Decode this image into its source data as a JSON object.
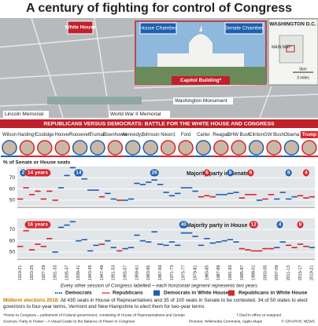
{
  "title": "A century of fighting for control of Congress",
  "map": {
    "white_house": "White House",
    "house_chamber": "House Chamber",
    "senate_chamber": "Senate Chamber",
    "capitol": "Capitol Building*",
    "inset_title": "WASHINGTON D.C.",
    "inset_main": "MAIN MAP",
    "scale_km": "5km",
    "scale_mi": "3 miles",
    "lincoln": "Lincoln Memorial",
    "ww2": "World War II Memorial",
    "monument": "Washington Monument"
  },
  "banner": "REPUBLICANS VERSUS DEMOCRATS: BATTLE FOR THE WHITE HOUSE AND CONGRESS",
  "presidents": [
    {
      "name": "Wilson",
      "color": "#1f5fb0"
    },
    {
      "name": "Harding†",
      "color": "#d7262d"
    },
    {
      "name": "Coolidge",
      "color": "#d7262d"
    },
    {
      "name": "Hoover",
      "color": "#d7262d"
    },
    {
      "name": "Roosevelt",
      "color": "#1f5fb0"
    },
    {
      "name": "Truman",
      "color": "#1f5fb0"
    },
    {
      "name": "Eisenhower",
      "color": "#d7262d"
    },
    {
      "name": "Kennedy‡",
      "color": "#1f5fb0"
    },
    {
      "name": "Johnson",
      "color": "#1f5fb0"
    },
    {
      "name": "Nixon‡",
      "color": "#d7262d"
    },
    {
      "name": "Ford",
      "color": "#d7262d"
    },
    {
      "name": "Carter",
      "color": "#1f5fb0"
    },
    {
      "name": "Reagan",
      "color": "#d7262d"
    },
    {
      "name": "GHW Bush",
      "color": "#d7262d"
    },
    {
      "name": "Clinton",
      "color": "#1f5fb0"
    },
    {
      "name": "GW Bush",
      "color": "#d7262d"
    },
    {
      "name": "Obama",
      "color": "#1f5fb0"
    },
    {
      "name": "Trump",
      "color": "#d7262d"
    }
  ],
  "y_axis_label": "% of Senate or House seats",
  "chart_data": [
    {
      "type": "line",
      "title": "Majority party in Senate",
      "ylim": [
        45,
        80
      ],
      "yticks": [
        50,
        60,
        70
      ],
      "grid": true,
      "series": [
        {
          "color": "#1f5fb0",
          "values": [
            null,
            null,
            null,
            null,
            null,
            null,
            null,
            61,
            72,
            79,
            72,
            69,
            59,
            59,
            null,
            56,
            51,
            null,
            50,
            51,
            65,
            64,
            66,
            68,
            64,
            57,
            54,
            56,
            61,
            61,
            58,
            null,
            null,
            null,
            55,
            55,
            56,
            57,
            null,
            null,
            null,
            50,
            null,
            null,
            51,
            57,
            51,
            53,
            null,
            null,
            null
          ]
        },
        {
          "color": "#d7262d",
          "values": [
            51,
            61,
            55,
            58,
            51,
            58,
            50,
            null,
            null,
            null,
            null,
            null,
            null,
            null,
            53,
            null,
            null,
            50,
            null,
            null,
            null,
            null,
            null,
            null,
            null,
            null,
            null,
            null,
            null,
            null,
            null,
            53,
            54,
            53,
            null,
            null,
            null,
            null,
            52,
            55,
            55,
            null,
            51,
            55,
            null,
            null,
            null,
            null,
            54,
            52,
            53
          ]
        }
      ],
      "annotations": [
        {
          "text": "2",
          "color": "#1f5fb0"
        },
        {
          "text": "14 years",
          "color": "#d7262d"
        },
        {
          "text": "14",
          "color": "#1f5fb0"
        },
        {
          "text": "26",
          "color": "#1f5fb0"
        },
        {
          "text": "6",
          "color": "#d7262d"
        },
        {
          "text": "8",
          "color": "#1f5fb0"
        },
        {
          "text": "6",
          "color": "#d7262d"
        },
        {
          "text": "8",
          "color": "#1f5fb0"
        },
        {
          "text": "4",
          "color": "#d7262d"
        }
      ]
    },
    {
      "type": "line",
      "title": "Majority party in House",
      "ylim": [
        45,
        80
      ],
      "yticks": [
        50,
        60,
        70
      ],
      "grid": true,
      "categories": [
        "1919-21",
        null,
        "1923-25",
        null,
        "1927-29",
        null,
        "1931-33",
        null,
        "1935-37",
        null,
        "1939-41",
        null,
        "1943-45",
        null,
        "1947-49",
        null,
        "1951-53",
        null,
        "1955-57",
        null,
        "1959-61",
        null,
        "1963-65",
        null,
        "1967-69",
        null,
        "1971-73",
        null,
        "1975-77",
        null,
        "1979-81",
        null,
        "1983-85",
        null,
        "1987-89",
        null,
        "1991-93",
        null,
        "1995-97",
        null,
        "1999-01",
        null,
        "2003-05",
        null,
        "2007-09",
        null,
        "2011-13",
        null,
        "2015-17",
        null,
        "2019-21"
      ],
      "series": [
        {
          "name": "Democrats",
          "color": "#1f5fb0",
          "values": [
            null,
            null,
            null,
            null,
            null,
            null,
            50,
            72,
            74,
            77,
            60,
            61,
            51,
            56,
            null,
            60,
            54,
            null,
            53,
            54,
            65,
            60,
            59,
            68,
            57,
            56,
            59,
            56,
            67,
            67,
            64,
            56,
            62,
            58,
            59,
            60,
            61,
            59,
            null,
            null,
            null,
            null,
            null,
            null,
            54,
            59,
            null,
            null,
            null,
            null,
            54
          ]
        },
        {
          "name": "Republicans",
          "color": "#d7262d",
          "values": [
            55,
            69,
            52,
            57,
            55,
            62,
            null,
            null,
            null,
            null,
            null,
            null,
            null,
            null,
            57,
            null,
            null,
            51,
            null,
            null,
            null,
            null,
            null,
            null,
            null,
            null,
            null,
            null,
            null,
            null,
            null,
            null,
            null,
            null,
            null,
            null,
            null,
            null,
            53,
            52,
            51,
            51,
            53,
            53,
            null,
            null,
            56,
            54,
            57,
            55,
            null
          ]
        }
      ],
      "annotations": [
        {
          "text": "16 years",
          "color": "#d7262d"
        },
        {
          "text": "40",
          "color": "#1f5fb0"
        },
        {
          "text": "12",
          "color": "#d7262d"
        },
        {
          "text": "4",
          "color": "#1f5fb0"
        },
        {
          "text": "8",
          "color": "#d7262d"
        }
      ]
    }
  ],
  "note": "Every other session of Congress labelled – each horizontal segment represents two years",
  "legend": [
    "Democrats",
    "Republicans",
    "Democrats in White House",
    "Republicans in White House"
  ],
  "midterm": {
    "label": "Midterm elections 2018:",
    "text": "All 435 seats in House of Representatives and 35 of 100 seats in Senate to be contested. 34 of 50 states to elect governors to four-year terms, Vermont and New Hampshire to elect them for two-year terms"
  },
  "footnotes": [
    "*Home to Congress – parliament of Federal government, consisting of House of Representatives and Senate",
    "† Died in office or resigned"
  ],
  "sources": "Sources: Party in Power – A Visual Guide to the Balance of Power in Congress",
  "pictures": "Pictures: Wikimedia Commons, Apple Maps",
  "credit": "© GRAPHIC NEWS"
}
